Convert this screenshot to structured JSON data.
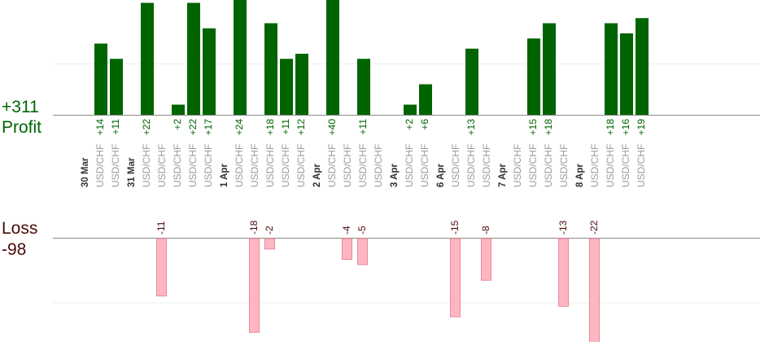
{
  "summary": {
    "profit_total": "+311",
    "profit_label": "Profit",
    "loss_label": "Loss",
    "loss_total": "-98"
  },
  "colors": {
    "profit_bar": "#006400",
    "profit_text": "#006400",
    "loss_bar": "#ffb6c1",
    "loss_bar_edge": "#e58a99",
    "loss_text": "#4a0a0a",
    "axis": "#8a8a8a",
    "grid": "#ececec",
    "pair_text": "#9a9a9a",
    "date_text": "#333333"
  },
  "chart_data": {
    "type": "bar",
    "grid": true,
    "categories": [
      "30 Mar",
      "USD/CHF",
      "USD/CHF",
      "31 Mar",
      "USD/CHF",
      "USD/CHF",
      "USD/CHF",
      "USD/CHF",
      "USD/CHF",
      "1 Apr",
      "USD/CHF",
      "USD/CHF",
      "USD/CHF",
      "USD/CHF",
      "USD/CHF",
      "2 Apr",
      "USD/CHF",
      "USD/CHF",
      "USD/CHF",
      "USD/CHF",
      "3 Apr",
      "USD/CHF",
      "USD/CHF",
      "6 Apr",
      "USD/CHF",
      "USD/CHF",
      "USD/CHF",
      "7 Apr",
      "USD/CHF",
      "USD/CHF",
      "USD/CHF",
      "USD/CHF",
      "8 Apr",
      "USD/CHF",
      "USD/CHF",
      "USD/CHF",
      "USD/CHF"
    ],
    "series": [
      {
        "values": [
          null,
          14,
          11,
          null,
          22,
          null,
          2,
          22,
          17,
          null,
          24,
          null,
          18,
          11,
          12,
          null,
          40,
          null,
          11,
          null,
          null,
          2,
          6,
          null,
          null,
          13,
          null,
          null,
          null,
          15,
          18,
          null,
          null,
          null,
          18,
          16,
          19
        ],
        "labels": [
          null,
          "+14",
          "+11",
          null,
          "+22",
          null,
          "+2",
          "+22",
          "+17",
          null,
          "+24",
          null,
          "+18",
          "+11",
          "+12",
          null,
          "+40",
          null,
          "+11",
          null,
          null,
          "+2",
          "+6",
          null,
          null,
          "+13",
          null,
          null,
          null,
          "+15",
          "+18",
          null,
          null,
          null,
          "+18",
          "+16",
          "+19"
        ]
      },
      {
        "values": [
          null,
          null,
          null,
          null,
          null,
          -11,
          null,
          null,
          null,
          null,
          null,
          -18,
          -2,
          null,
          null,
          null,
          null,
          -4,
          -5,
          null,
          null,
          null,
          null,
          null,
          -15,
          null,
          -8,
          null,
          null,
          null,
          null,
          -13,
          null,
          -22,
          null,
          null,
          null
        ],
        "labels": [
          null,
          null,
          null,
          null,
          null,
          "-11",
          null,
          null,
          null,
          null,
          null,
          "-18",
          "-2",
          null,
          null,
          null,
          null,
          "-4",
          "-5",
          null,
          null,
          null,
          null,
          null,
          "-15",
          null,
          "-8",
          null,
          null,
          null,
          null,
          "-13",
          null,
          "-22",
          null,
          null,
          null
        ]
      }
    ],
    "ylim_profit": [
      0,
      20
    ],
    "ylim_loss": [
      -18,
      0
    ]
  }
}
